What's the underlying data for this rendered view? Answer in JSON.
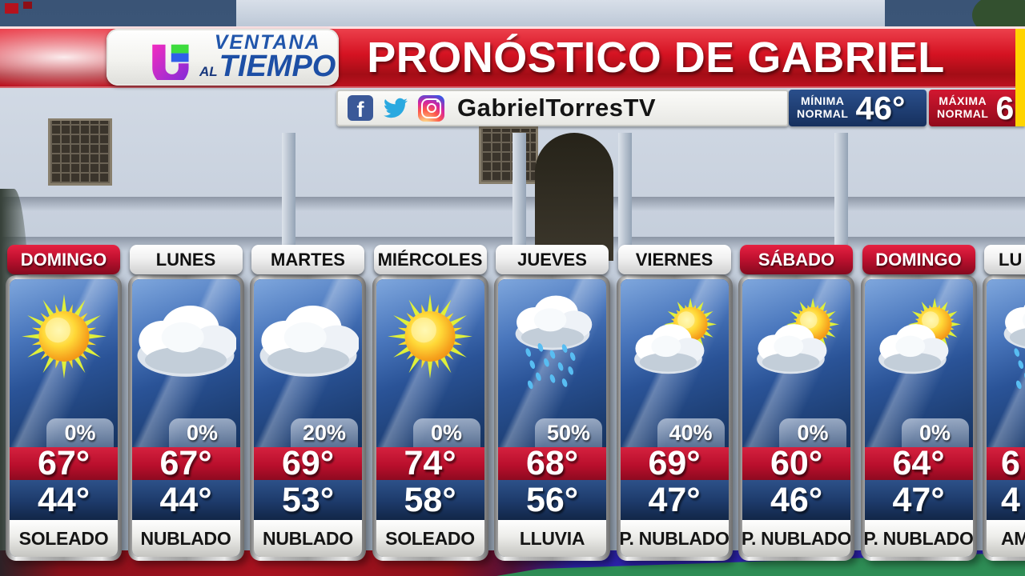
{
  "brand": {
    "logo": "univision-logo",
    "line1": "VENTANA",
    "line2_small": "AL",
    "line2_big": "TIEMPO"
  },
  "banner": {
    "title": "PRONÓSTICO DE GABRIEL"
  },
  "social": {
    "handle": "GabrielTorresTV",
    "icons": [
      "facebook-icon",
      "twitter-icon",
      "instagram-icon"
    ]
  },
  "normals": {
    "minima": {
      "label_line1": "MÍNIMA",
      "label_line2": "NORMAL",
      "value": "46°"
    },
    "maxima": {
      "label_line1": "MÁXIMA",
      "label_line2": "NORMAL",
      "value": "6"
    }
  },
  "colors": {
    "banner_red": "#d51322",
    "header_red": "#c11130",
    "high_band_red": "#b90f2c",
    "low_band_blue": "#1d3a6a",
    "minima_blue": "#1d3f77",
    "maxima_red": "#c01025",
    "icon_panel_blue": "#2a5397",
    "accent_yellow": "#ffd400",
    "show_name_blue": "#1d4fa5"
  },
  "days": [
    {
      "name": "DOMINGO",
      "weekend": true,
      "icon": "sunny",
      "pop": "0%",
      "high": "67°",
      "low": "44°",
      "condition": "SOLEADO",
      "clipped": false
    },
    {
      "name": "LUNES",
      "weekend": false,
      "icon": "cloudy",
      "pop": "0%",
      "high": "67°",
      "low": "44°",
      "condition": "NUBLADO",
      "clipped": false
    },
    {
      "name": "MARTES",
      "weekend": false,
      "icon": "cloudy",
      "pop": "20%",
      "high": "69°",
      "low": "53°",
      "condition": "NUBLADO",
      "clipped": false
    },
    {
      "name": "MIÉRCOLES",
      "weekend": false,
      "icon": "sunny",
      "pop": "0%",
      "high": "74°",
      "low": "58°",
      "condition": "SOLEADO",
      "clipped": false
    },
    {
      "name": "JUEVES",
      "weekend": false,
      "icon": "rain",
      "pop": "50%",
      "high": "68°",
      "low": "56°",
      "condition": "LLUVIA",
      "clipped": false
    },
    {
      "name": "VIERNES",
      "weekend": false,
      "icon": "partly-cloudy",
      "pop": "40%",
      "high": "69°",
      "low": "47°",
      "condition": "P. NUBLADO",
      "clipped": false
    },
    {
      "name": "SÁBADO",
      "weekend": true,
      "icon": "partly-cloudy",
      "pop": "0%",
      "high": "60°",
      "low": "46°",
      "condition": "P. NUBLADO",
      "clipped": false
    },
    {
      "name": "DOMINGO",
      "weekend": true,
      "icon": "partly-cloudy",
      "pop": "0%",
      "high": "64°",
      "low": "47°",
      "condition": "P. NUBLADO",
      "clipped": false
    },
    {
      "name": "LU",
      "weekend": false,
      "icon": "rain",
      "pop": "",
      "high": "6",
      "low": "4",
      "condition": "AM S",
      "clipped": true
    }
  ]
}
